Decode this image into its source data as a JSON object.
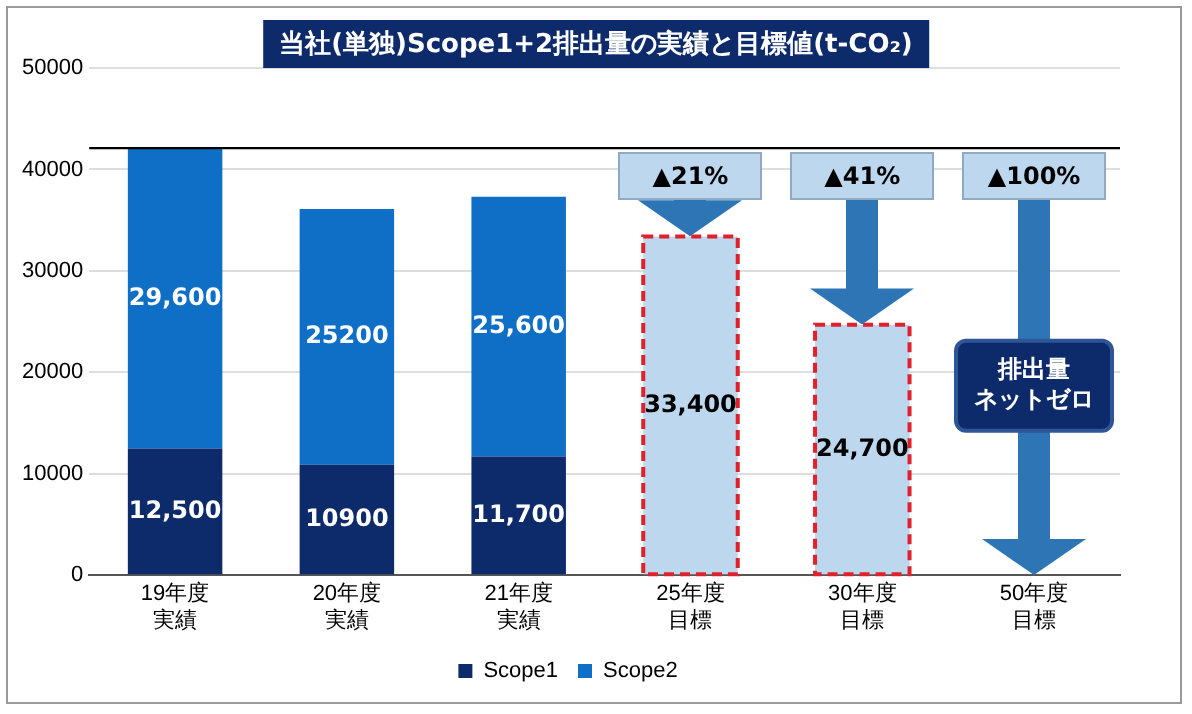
{
  "chart_data": {
    "type": "bar",
    "title": "当社(単独)Scope1+2排出量の実績と目標値(t-CO₂)",
    "categories": [
      "19年度実績",
      "20年度実績",
      "21年度実績",
      "25年度目標",
      "30年度目標",
      "50年度目標"
    ],
    "stacked": true,
    "series": [
      {
        "name": "Scope1",
        "color": "#0d2a6b",
        "values": [
          12500,
          10900,
          11700,
          null,
          null,
          null
        ],
        "value_labels": [
          "12,500",
          "10900",
          "11,700",
          null,
          null,
          null
        ]
      },
      {
        "name": "Scope2",
        "color": "#0f6fc6",
        "values": [
          29600,
          25200,
          25600,
          null,
          null,
          null
        ],
        "value_labels": [
          "29,600",
          "25200",
          "25,600",
          null,
          null,
          null
        ]
      },
      {
        "color": "#bdd7ee",
        "line_style": "dashed",
        "values": [
          null,
          null,
          null,
          33400,
          24700,
          null
        ],
        "value_labels": [
          null,
          null,
          null,
          "33,400",
          "24,700",
          null
        ]
      }
    ],
    "ylim": [
      0,
      50000
    ],
    "yticks": [
      0,
      10000,
      20000,
      30000,
      40000,
      50000
    ],
    "grid": "y",
    "legend": "bottom",
    "ref_lines": [
      {
        "axis": "y",
        "value": 42100,
        "color": "#000000"
      }
    ],
    "annotations": [
      "▲21%",
      "▲41%",
      "▲100%",
      "排出量ネットゼロ"
    ]
  }
}
